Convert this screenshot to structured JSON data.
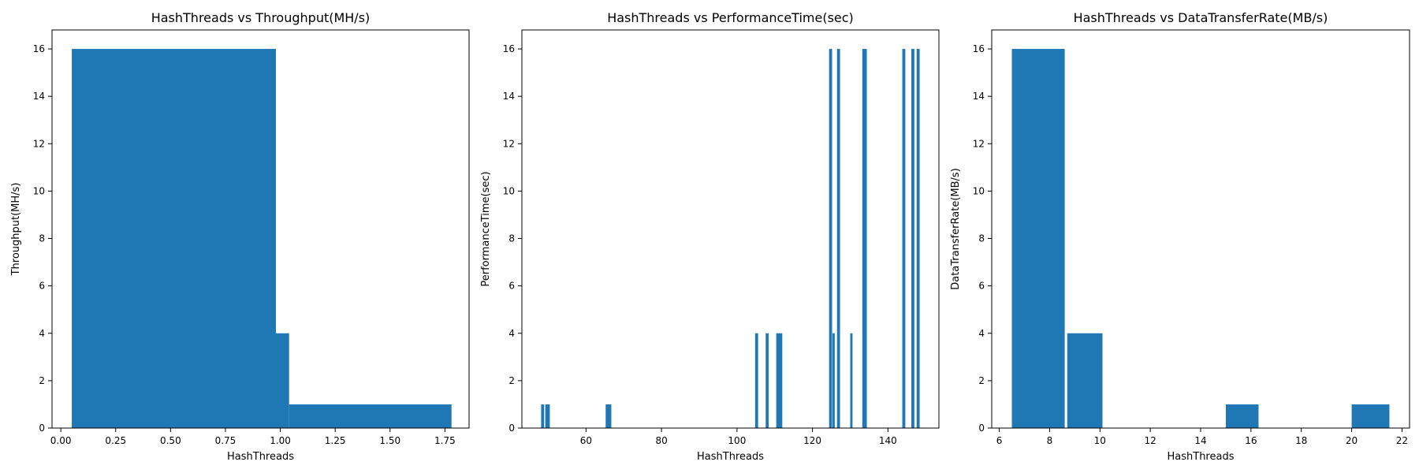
{
  "colors": {
    "bar": "#1f77b4",
    "axis": "#000000",
    "background": "#ffffff"
  },
  "chart_data": [
    {
      "type": "bar",
      "title": "HashThreads vs Throughput(MH/s)",
      "xlabel": "HashThreads",
      "ylabel": "Throughput(MH/s)",
      "xlim": [
        -0.04,
        1.86
      ],
      "ylim": [
        0,
        16.8
      ],
      "xticks": [
        "0.00",
        "0.25",
        "0.50",
        "0.75",
        "1.00",
        "1.25",
        "1.50",
        "1.75"
      ],
      "xtick_values": [
        0,
        0.25,
        0.5,
        0.75,
        1.0,
        1.25,
        1.5,
        1.75
      ],
      "yticks": [
        "0",
        "2",
        "4",
        "6",
        "8",
        "10",
        "12",
        "14",
        "16"
      ],
      "ytick_values": [
        0,
        2,
        4,
        6,
        8,
        10,
        12,
        14,
        16
      ],
      "grid": false,
      "bars": [
        {
          "x0": 0.05,
          "x1": 0.98,
          "value": 16
        },
        {
          "x0": 0.98,
          "x1": 1.04,
          "value": 4
        },
        {
          "x0": 1.04,
          "x1": 1.78,
          "value": 1
        }
      ]
    },
    {
      "type": "bar",
      "title": "HashThreads vs PerformanceTime(sec)",
      "xlabel": "HashThreads",
      "ylabel": "PerformanceTime(sec)",
      "xlim": [
        43,
        153.5
      ],
      "ylim": [
        0,
        16.8
      ],
      "xticks": [
        "60",
        "80",
        "100",
        "120",
        "140"
      ],
      "xtick_values": [
        60,
        80,
        100,
        120,
        140
      ],
      "yticks": [
        "0",
        "2",
        "4",
        "6",
        "8",
        "10",
        "12",
        "14",
        "16"
      ],
      "ytick_values": [
        0,
        2,
        4,
        6,
        8,
        10,
        12,
        14,
        16
      ],
      "grid": false,
      "bars": [
        {
          "x0": 48.1,
          "x1": 48.9,
          "value": 1
        },
        {
          "x0": 49.2,
          "x1": 50.4,
          "value": 1
        },
        {
          "x0": 65.2,
          "x1": 66.7,
          "value": 1
        },
        {
          "x0": 104.8,
          "x1": 105.6,
          "value": 4
        },
        {
          "x0": 107.6,
          "x1": 108.4,
          "value": 4
        },
        {
          "x0": 110.4,
          "x1": 112.0,
          "value": 4
        },
        {
          "x0": 124.4,
          "x1": 125.2,
          "value": 16
        },
        {
          "x0": 125.3,
          "x1": 125.9,
          "value": 4
        },
        {
          "x0": 126.5,
          "x1": 127.3,
          "value": 16
        },
        {
          "x0": 130.0,
          "x1": 130.6,
          "value": 4
        },
        {
          "x0": 133.2,
          "x1": 134.4,
          "value": 16
        },
        {
          "x0": 143.8,
          "x1": 144.6,
          "value": 16
        },
        {
          "x0": 146.2,
          "x1": 147.0,
          "value": 16
        },
        {
          "x0": 147.6,
          "x1": 148.4,
          "value": 16
        }
      ]
    },
    {
      "type": "bar",
      "title": "HashThreads vs DataTransferRate(MB/s)",
      "xlabel": "HashThreads",
      "ylabel": "DataTransferRate(MB/s)",
      "xlim": [
        5.7,
        22.3
      ],
      "ylim": [
        0,
        16.8
      ],
      "xticks": [
        "6",
        "8",
        "10",
        "12",
        "14",
        "16",
        "18",
        "20",
        "22"
      ],
      "xtick_values": [
        6,
        8,
        10,
        12,
        14,
        16,
        18,
        20,
        22
      ],
      "yticks": [
        "0",
        "2",
        "4",
        "6",
        "8",
        "10",
        "12",
        "14",
        "16"
      ],
      "ytick_values": [
        0,
        2,
        4,
        6,
        8,
        10,
        12,
        14,
        16
      ],
      "grid": false,
      "bars": [
        {
          "x0": 6.5,
          "x1": 8.6,
          "value": 16
        },
        {
          "x0": 8.7,
          "x1": 10.1,
          "value": 4
        },
        {
          "x0": 15.0,
          "x1": 16.3,
          "value": 1
        },
        {
          "x0": 20.0,
          "x1": 21.5,
          "value": 1
        }
      ]
    }
  ]
}
